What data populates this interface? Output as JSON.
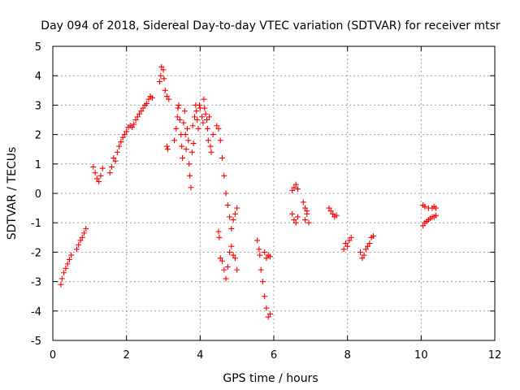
{
  "colors": {
    "marker": "#ff0000",
    "grid": "#a0a0a0",
    "axis": "#000000"
  },
  "chart_data": {
    "type": "scatter",
    "marker": "plus",
    "title": "Day 094 of 2018, Sidereal Day-to-day VTEC variation (SDTVAR) for receiver mtsr",
    "xlabel": "GPS time / hours",
    "ylabel": "SDTVAR / TECUs",
    "xlim": [
      0,
      12
    ],
    "ylim": [
      -5,
      5
    ],
    "x_ticks": [
      0,
      2,
      4,
      6,
      8,
      10,
      12
    ],
    "y_ticks": [
      -5,
      -4,
      -3,
      -2,
      -1,
      0,
      1,
      2,
      3,
      4,
      5
    ],
    "grid": true,
    "series": [
      {
        "name": "SDTVAR",
        "points": [
          [
            0.22,
            -3.1
          ],
          [
            0.25,
            -2.9
          ],
          [
            0.3,
            -2.7
          ],
          [
            0.35,
            -2.55
          ],
          [
            0.4,
            -2.4
          ],
          [
            0.45,
            -2.25
          ],
          [
            0.5,
            -2.1
          ],
          [
            0.65,
            -1.9
          ],
          [
            0.7,
            -1.75
          ],
          [
            0.75,
            -1.6
          ],
          [
            0.8,
            -1.5
          ],
          [
            0.85,
            -1.35
          ],
          [
            0.9,
            -1.2
          ],
          [
            1.1,
            0.9
          ],
          [
            1.15,
            0.7
          ],
          [
            1.2,
            0.5
          ],
          [
            1.25,
            0.4
          ],
          [
            1.3,
            0.6
          ],
          [
            1.35,
            0.85
          ],
          [
            1.55,
            0.7
          ],
          [
            1.6,
            0.9
          ],
          [
            1.65,
            1.2
          ],
          [
            1.7,
            1.1
          ],
          [
            1.75,
            1.4
          ],
          [
            1.8,
            1.6
          ],
          [
            1.85,
            1.75
          ],
          [
            1.9,
            1.9
          ],
          [
            1.95,
            2.0
          ],
          [
            2.0,
            2.1
          ],
          [
            2.05,
            2.25
          ],
          [
            2.1,
            2.3
          ],
          [
            2.15,
            2.25
          ],
          [
            2.2,
            2.35
          ],
          [
            2.25,
            2.5
          ],
          [
            2.3,
            2.6
          ],
          [
            2.35,
            2.7
          ],
          [
            2.4,
            2.8
          ],
          [
            2.45,
            2.9
          ],
          [
            2.5,
            3.0
          ],
          [
            2.55,
            3.05
          ],
          [
            2.6,
            3.2
          ],
          [
            2.65,
            3.3
          ],
          [
            2.7,
            3.25
          ],
          [
            2.9,
            3.8
          ],
          [
            2.93,
            4.0
          ],
          [
            2.95,
            4.3
          ],
          [
            3.0,
            4.2
          ],
          [
            3.02,
            3.9
          ],
          [
            3.05,
            3.5
          ],
          [
            3.1,
            3.3
          ],
          [
            3.15,
            3.2
          ],
          [
            3.1,
            1.6
          ],
          [
            3.12,
            1.5
          ],
          [
            3.3,
            1.8
          ],
          [
            3.35,
            2.2
          ],
          [
            3.38,
            2.6
          ],
          [
            3.4,
            2.9
          ],
          [
            3.42,
            3.0
          ],
          [
            3.45,
            2.5
          ],
          [
            3.48,
            2.0
          ],
          [
            3.5,
            1.6
          ],
          [
            3.52,
            1.2
          ],
          [
            3.55,
            2.4
          ],
          [
            3.58,
            2.8
          ],
          [
            3.6,
            2.0
          ],
          [
            3.62,
            1.5
          ],
          [
            3.65,
            2.2
          ],
          [
            3.68,
            1.8
          ],
          [
            3.7,
            1.0
          ],
          [
            3.72,
            0.6
          ],
          [
            3.75,
            0.2
          ],
          [
            3.78,
            1.4
          ],
          [
            3.8,
            2.3
          ],
          [
            3.82,
            1.7
          ],
          [
            3.85,
            2.6
          ],
          [
            3.88,
            3.0
          ],
          [
            3.9,
            2.8
          ],
          [
            3.92,
            2.5
          ],
          [
            3.95,
            2.2
          ],
          [
            3.98,
            3.0
          ],
          [
            4.0,
            2.9
          ],
          [
            4.05,
            2.6
          ],
          [
            4.08,
            2.4
          ],
          [
            4.1,
            3.2
          ],
          [
            4.12,
            2.9
          ],
          [
            4.15,
            2.7
          ],
          [
            4.18,
            2.5
          ],
          [
            4.2,
            2.2
          ],
          [
            4.22,
            1.8
          ],
          [
            4.25,
            2.6
          ],
          [
            4.28,
            1.6
          ],
          [
            4.3,
            1.4
          ],
          [
            4.35,
            2.0
          ],
          [
            4.45,
            2.3
          ],
          [
            4.5,
            2.2
          ],
          [
            4.55,
            1.8
          ],
          [
            4.6,
            1.2
          ],
          [
            4.65,
            0.6
          ],
          [
            4.7,
            0.0
          ],
          [
            4.75,
            -0.4
          ],
          [
            4.8,
            -0.8
          ],
          [
            4.85,
            -1.2
          ],
          [
            4.9,
            -0.9
          ],
          [
            4.95,
            -0.7
          ],
          [
            5.0,
            -0.5
          ],
          [
            4.5,
            -1.3
          ],
          [
            4.52,
            -1.5
          ],
          [
            4.55,
            -2.2
          ],
          [
            4.6,
            -2.3
          ],
          [
            4.65,
            -2.6
          ],
          [
            4.7,
            -2.9
          ],
          [
            4.75,
            -2.5
          ],
          [
            4.8,
            -2.0
          ],
          [
            4.85,
            -1.8
          ],
          [
            4.9,
            -2.1
          ],
          [
            4.95,
            -2.2
          ],
          [
            5.0,
            -2.6
          ],
          [
            5.55,
            -1.6
          ],
          [
            5.6,
            -1.9
          ],
          [
            5.62,
            -2.1
          ],
          [
            5.65,
            -2.6
          ],
          [
            5.7,
            -3.0
          ],
          [
            5.75,
            -3.5
          ],
          [
            5.8,
            -3.9
          ],
          [
            5.85,
            -4.2
          ],
          [
            5.9,
            -4.1
          ],
          [
            5.75,
            -2.0
          ],
          [
            5.8,
            -2.2
          ],
          [
            5.85,
            -2.1
          ],
          [
            5.9,
            -2.15
          ],
          [
            6.5,
            0.1
          ],
          [
            6.55,
            0.2
          ],
          [
            6.6,
            0.3
          ],
          [
            6.65,
            0.15
          ],
          [
            6.5,
            -0.7
          ],
          [
            6.55,
            -0.9
          ],
          [
            6.6,
            -1.0
          ],
          [
            6.65,
            -0.8
          ],
          [
            6.8,
            -0.3
          ],
          [
            6.85,
            -0.5
          ],
          [
            6.9,
            -0.7
          ],
          [
            6.95,
            -1.0
          ],
          [
            6.85,
            -0.9
          ],
          [
            6.9,
            -0.6
          ],
          [
            7.5,
            -0.5
          ],
          [
            7.55,
            -0.6
          ],
          [
            7.6,
            -0.7
          ],
          [
            7.65,
            -0.8
          ],
          [
            7.7,
            -0.75
          ],
          [
            7.9,
            -1.9
          ],
          [
            7.95,
            -1.7
          ],
          [
            8.0,
            -1.8
          ],
          [
            8.05,
            -1.6
          ],
          [
            8.1,
            -1.5
          ],
          [
            8.35,
            -2.0
          ],
          [
            8.4,
            -2.2
          ],
          [
            8.45,
            -2.1
          ],
          [
            8.5,
            -1.9
          ],
          [
            8.55,
            -1.8
          ],
          [
            8.6,
            -1.7
          ],
          [
            8.65,
            -1.5
          ],
          [
            8.7,
            -1.45
          ],
          [
            10.05,
            -1.1
          ],
          [
            10.1,
            -1.0
          ],
          [
            10.15,
            -0.95
          ],
          [
            10.2,
            -0.9
          ],
          [
            10.25,
            -0.85
          ],
          [
            10.3,
            -0.8
          ],
          [
            10.35,
            -0.8
          ],
          [
            10.4,
            -0.75
          ],
          [
            10.05,
            -0.4
          ],
          [
            10.1,
            -0.45
          ],
          [
            10.2,
            -0.5
          ],
          [
            10.3,
            -0.5
          ],
          [
            10.35,
            -0.45
          ],
          [
            10.4,
            -0.5
          ]
        ]
      }
    ]
  }
}
